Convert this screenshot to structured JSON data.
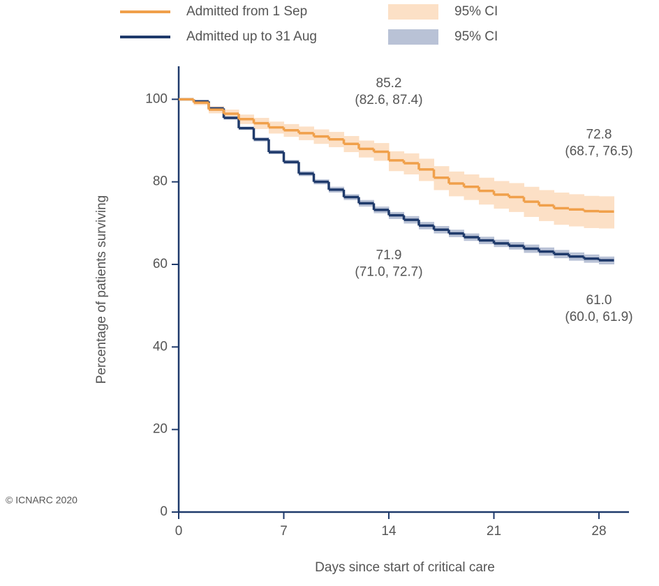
{
  "chart_data": {
    "type": "step",
    "xlabel": "Days since start of critical care",
    "ylabel": "Percentage of patients surviving",
    "copyright": "© ICNARC 2020",
    "x": [
      0,
      1,
      2,
      3,
      4,
      5,
      6,
      7,
      8,
      9,
      10,
      11,
      12,
      13,
      14,
      15,
      16,
      17,
      18,
      19,
      20,
      21,
      22,
      23,
      24,
      25,
      26,
      27,
      28,
      29
    ],
    "xlim": [
      0,
      30
    ],
    "xticks": [
      0,
      7,
      14,
      21,
      28
    ],
    "ylim": [
      0,
      108
    ],
    "yticks": [
      0,
      20,
      40,
      60,
      80,
      100
    ],
    "series": [
      {
        "name": "Admitted from 1 Sep",
        "color": "#f0a04b",
        "ci_name": "95% CI",
        "ci_color": "#fce0c6",
        "values": [
          100,
          99.2,
          97.5,
          96.5,
          95.2,
          94.2,
          93.2,
          92.5,
          91.8,
          91,
          90.3,
          89.2,
          88,
          87.3,
          85.2,
          84.5,
          83,
          81,
          79.6,
          78.8,
          77.8,
          76.9,
          76.3,
          75.2,
          74.3,
          73.6,
          73.3,
          72.9,
          72.8,
          72.8
        ],
        "lower": [
          100,
          98.6,
          96.6,
          95.4,
          94,
          92.8,
          91.7,
          90.9,
          90.1,
          89.2,
          88.4,
          87.2,
          85.9,
          85.1,
          82.6,
          81.8,
          80.2,
          78,
          76.5,
          75.6,
          74.5,
          73.5,
          72.7,
          71.5,
          70.5,
          69.6,
          69.2,
          68.8,
          68.7,
          68.7
        ],
        "upper": [
          100,
          99.7,
          98.3,
          97.5,
          96.3,
          95.5,
          94.6,
          94,
          93.4,
          92.7,
          92.1,
          91.1,
          90,
          89.4,
          87.4,
          86.9,
          85.6,
          83.8,
          82.5,
          81.8,
          81,
          80.2,
          79.7,
          78.8,
          78,
          77.4,
          77,
          76.6,
          76.5,
          76.5
        ],
        "annotations": [
          {
            "x": 14,
            "label": "85.2",
            "ci": "(82.6, 87.4)"
          },
          {
            "x": 28,
            "label": "72.8",
            "ci": "(68.7, 76.5)"
          }
        ]
      },
      {
        "name": "Admitted up to 31 Aug",
        "color": "#1f3a6b",
        "ci_name": "95% CI",
        "ci_color": "#b9c2d6",
        "values": [
          100,
          99.5,
          97.8,
          95.5,
          93,
          90.3,
          87.2,
          84.8,
          82,
          80,
          78.1,
          76.3,
          74.8,
          73.2,
          71.9,
          70.8,
          69.4,
          68.4,
          67.5,
          66.6,
          65.8,
          65.1,
          64.5,
          63.8,
          63.1,
          62.5,
          61.9,
          61.4,
          61,
          61
        ],
        "lower": [
          100,
          99.3,
          97.5,
          95.1,
          92.6,
          89.8,
          86.7,
          84.3,
          81.4,
          79.4,
          77.4,
          75.6,
          74,
          72.4,
          71,
          69.9,
          68.5,
          67.5,
          66.6,
          65.7,
          64.9,
          64.2,
          63.6,
          62.8,
          62.1,
          61.5,
          60.9,
          60.4,
          60,
          60
        ],
        "upper": [
          100,
          99.7,
          98.1,
          95.9,
          93.4,
          90.8,
          87.7,
          85.3,
          82.6,
          80.6,
          78.8,
          77,
          75.6,
          74,
          72.7,
          71.7,
          70.3,
          69.3,
          68.4,
          67.5,
          66.7,
          66,
          65.4,
          64.8,
          64.1,
          63.5,
          62.9,
          62.4,
          61.9,
          61.9
        ],
        "annotations": [
          {
            "x": 14,
            "label": "71.9",
            "ci": "(71.0, 72.7)"
          },
          {
            "x": 28,
            "label": "61.0",
            "ci": "(60.0, 61.9)"
          }
        ]
      }
    ]
  }
}
